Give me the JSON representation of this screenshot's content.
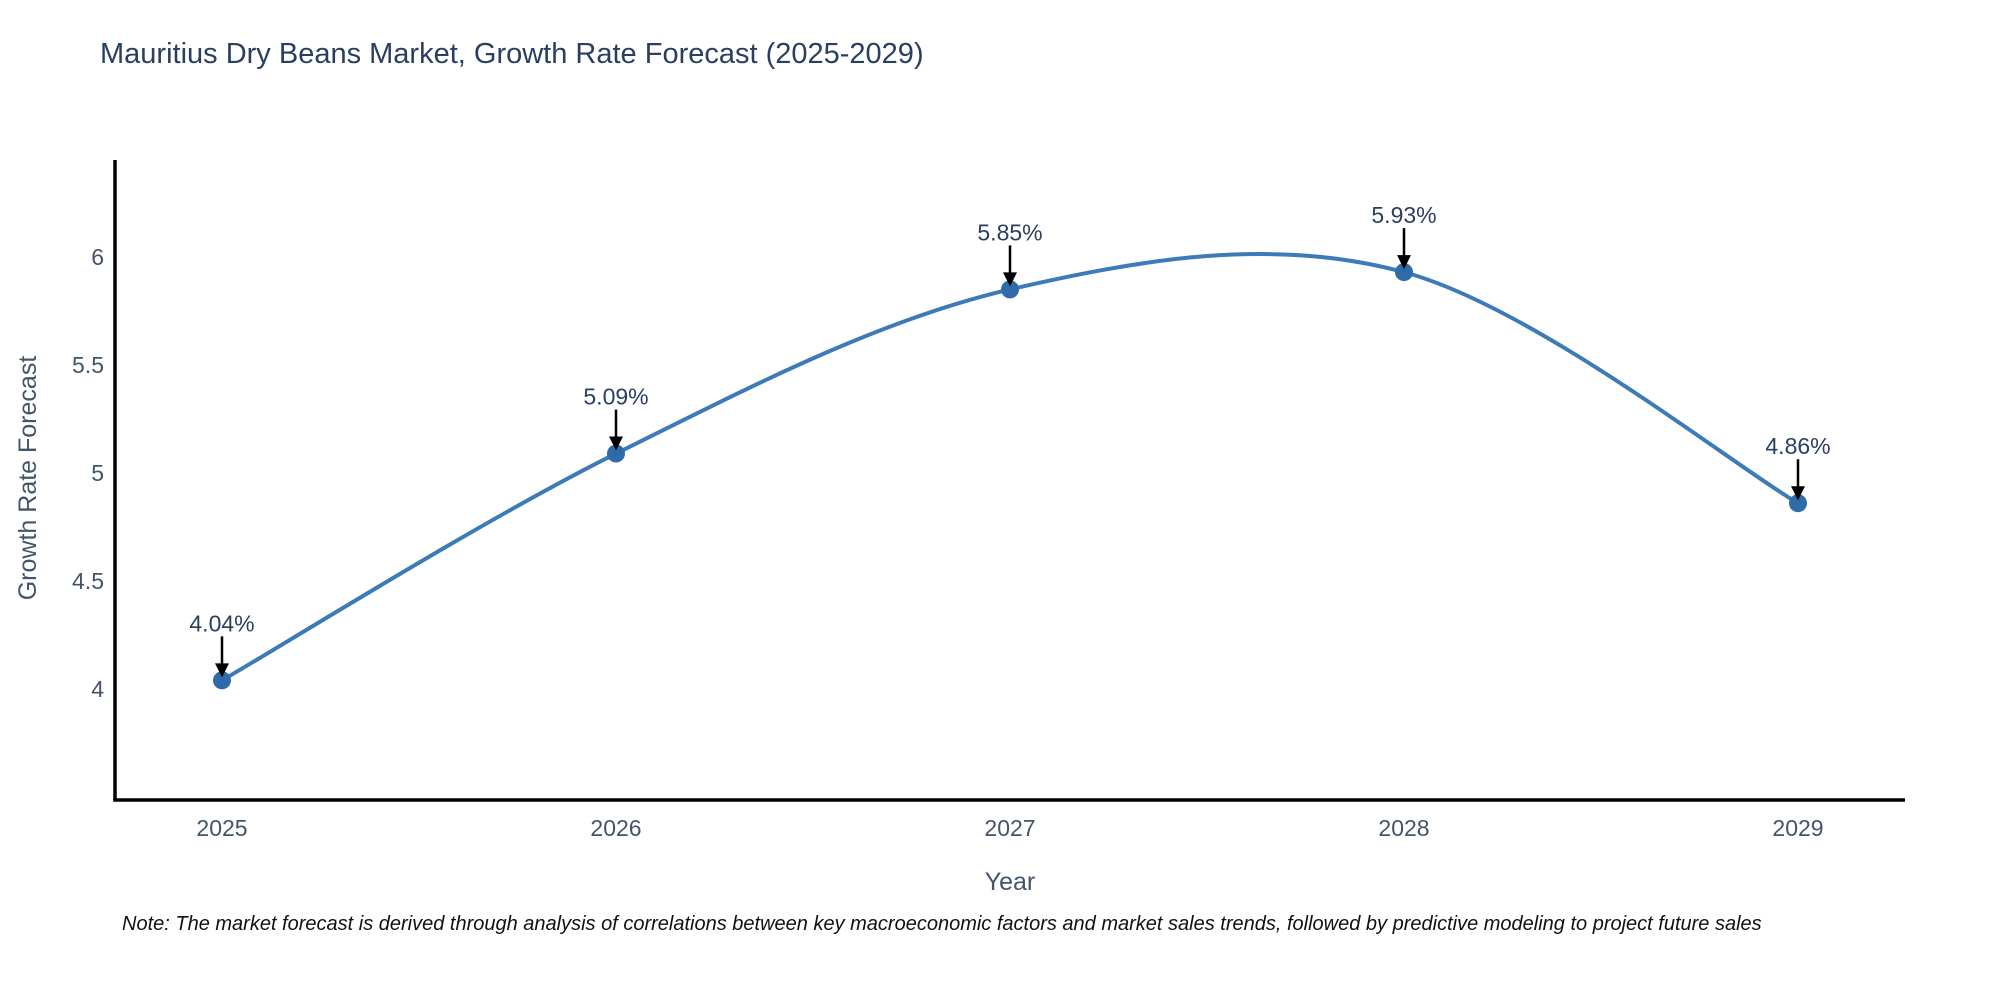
{
  "title": "Mauritius Dry Beans Market, Growth Rate Forecast (2025-2029)",
  "note": "Note: The market forecast is derived through analysis of correlations between key macroeconomic factors and market sales trends, followed by predictive modeling to project future sales",
  "chart_data": {
    "type": "line",
    "line_shape": "spline",
    "title": "Mauritius Dry Beans Market, Growth Rate Forecast (2025-2029)",
    "xlabel": "Year",
    "ylabel": "Growth Rate Forecast",
    "x": [
      "2025",
      "2026",
      "2027",
      "2028",
      "2029"
    ],
    "y": [
      4.04,
      5.09,
      5.85,
      5.93,
      4.86
    ],
    "point_labels": [
      "4.04%",
      "5.09%",
      "5.85%",
      "5.93%",
      "4.86%"
    ],
    "yticks": [
      "4",
      "4.5",
      "5",
      "5.5",
      "6"
    ],
    "ytick_values": [
      4,
      4.5,
      5,
      5.5,
      6
    ],
    "ylim": [
      3.49,
      6.45
    ],
    "grid": false,
    "legend": "none",
    "markers": true,
    "annotations_arrows": true,
    "colors": {
      "line": "#3d7ab8",
      "marker": "#2f6ba8",
      "axis": "#000000",
      "arrow": "#000000",
      "title_text": "#2a3f5f",
      "tick_text": "#44546a",
      "annotation_text": "#2a3f5f",
      "note_text": "#111111",
      "background": "#ffffff"
    }
  }
}
